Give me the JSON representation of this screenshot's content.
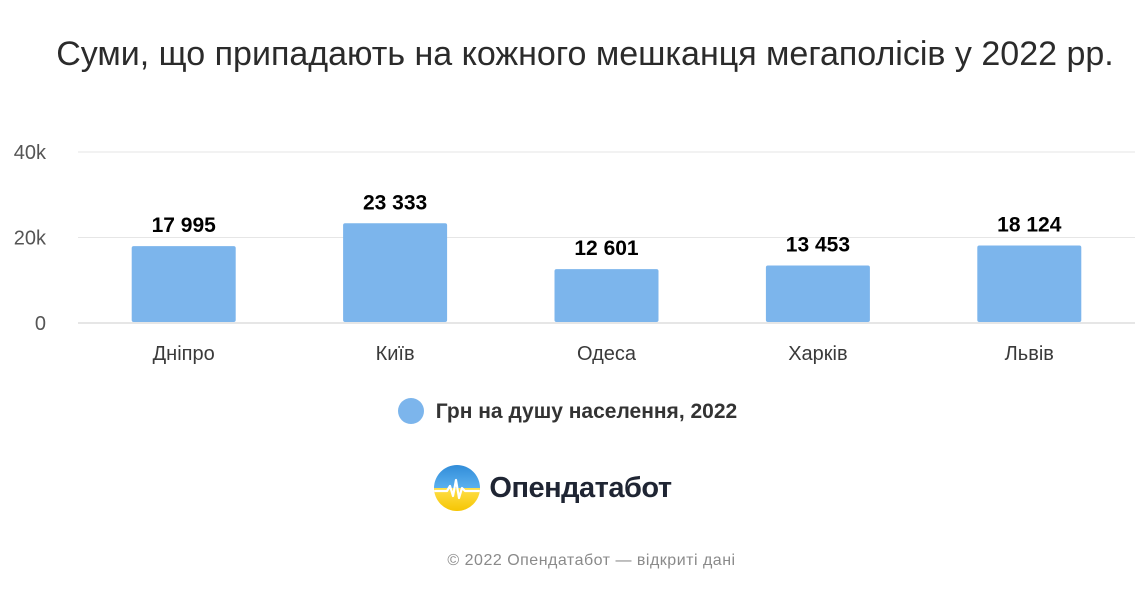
{
  "chart_data": {
    "type": "bar",
    "title": "Суми, що припадають на кожного мешканця мегаполісів у 2022 рр.",
    "categories": [
      "Дніпро",
      "Київ",
      "Одеса",
      "Харків",
      "Львів"
    ],
    "series": [
      {
        "name": "Грн на душу населення, 2022",
        "values": [
          17995,
          23333,
          12601,
          13453,
          18124
        ],
        "labels": [
          "17 995",
          "23 333",
          "12 601",
          "13 453",
          "18 124"
        ],
        "color": "#7cb5ec"
      }
    ],
    "ylim": [
      0,
      40000
    ],
    "yticks": [
      {
        "value": 0,
        "label": "0"
      },
      {
        "value": 20000,
        "label": "20k"
      },
      {
        "value": 40000,
        "label": "40k"
      }
    ],
    "grid": true,
    "legend_position": "bottom-center"
  },
  "logo": {
    "text": "Опендатабот"
  },
  "credits": "© 2022 Опендатабот — відкриті дані"
}
